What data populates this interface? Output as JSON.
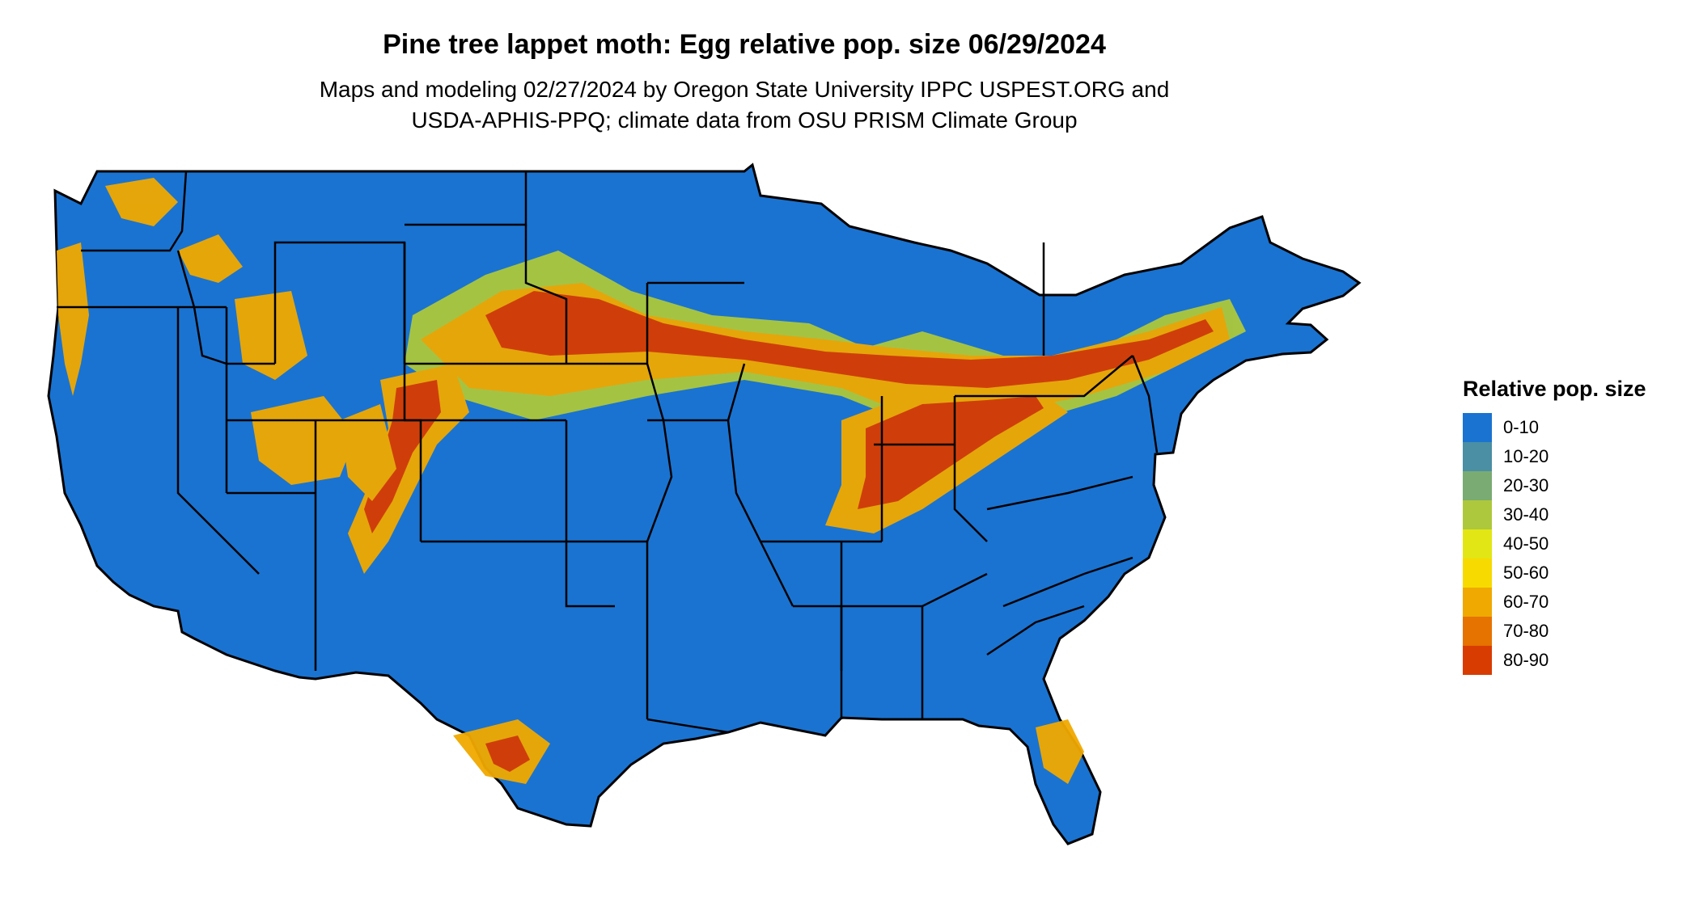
{
  "header": {
    "title": "Pine tree lappet moth: Egg relative pop. size 06/29/2024",
    "subtitle_line1": "Maps and modeling 02/27/2024 by Oregon State University IPPC USPEST.ORG and",
    "subtitle_line2": "USDA-APHIS-PPQ; climate data from OSU PRISM Climate Group"
  },
  "map": {
    "region": "contiguous United States",
    "base_color": "#1a73d1",
    "border_color": "#000000"
  },
  "legend": {
    "title": "Relative pop. size",
    "items": [
      {
        "label": "0-10",
        "color": "#1a73d1"
      },
      {
        "label": "10-20",
        "color": "#4a8fa3"
      },
      {
        "label": "20-30",
        "color": "#7aab72"
      },
      {
        "label": "30-40",
        "color": "#adc83c"
      },
      {
        "label": "40-50",
        "color": "#e2e614"
      },
      {
        "label": "50-60",
        "color": "#f7da00"
      },
      {
        "label": "60-70",
        "color": "#f0a900"
      },
      {
        "label": "70-80",
        "color": "#e67200"
      },
      {
        "label": "80-90",
        "color": "#d93c00"
      }
    ]
  }
}
